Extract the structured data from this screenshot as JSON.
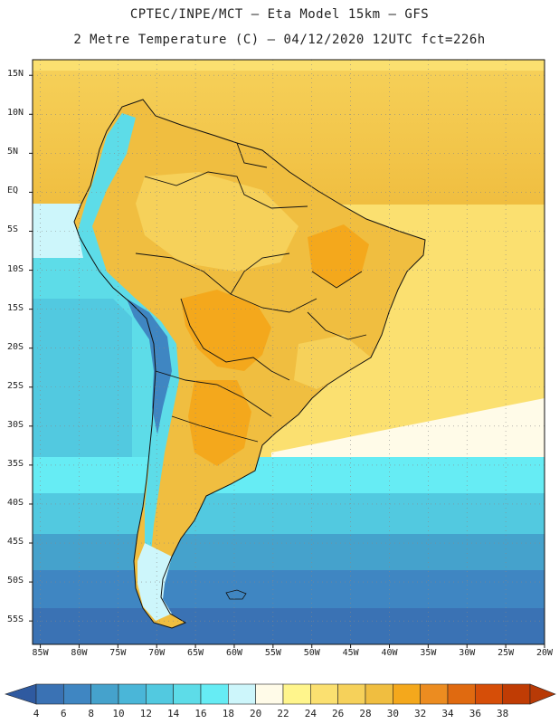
{
  "header": {
    "line1": "CPTEC/INPE/MCT —  Eta Model 15km — GFS",
    "line2": "2 Metre Temperature (C) — 04/12/2020 12UTC fct=226h"
  },
  "map": {
    "region": "South America",
    "lat_labels": [
      "15N",
      "10N",
      "5N",
      "EQ",
      "5S",
      "10S",
      "15S",
      "20S",
      "25S",
      "30S",
      "35S",
      "40S",
      "45S",
      "50S",
      "55S"
    ],
    "lat_values": [
      15,
      10,
      5,
      0,
      -5,
      -10,
      -15,
      -20,
      -25,
      -30,
      -35,
      -40,
      -45,
      -50,
      -55
    ],
    "lon_labels": [
      "85W",
      "80W",
      "75W",
      "70W",
      "65W",
      "60W",
      "55W",
      "50W",
      "45W",
      "40W",
      "35W",
      "30W",
      "25W",
      "20W"
    ],
    "lon_values": [
      -85,
      -80,
      -75,
      -70,
      -65,
      -60,
      -55,
      -50,
      -45,
      -40,
      -35,
      -30,
      -25,
      -20
    ],
    "lat_range": [
      -58,
      17
    ],
    "lon_range": [
      -86,
      -20
    ]
  },
  "colorbar": {
    "labels": [
      "4",
      "6",
      "8",
      "10",
      "12",
      "14",
      "16",
      "18",
      "20",
      "22",
      "24",
      "26",
      "28",
      "30",
      "32",
      "34",
      "36",
      "38"
    ],
    "colors": [
      "#3a72b4",
      "#3f86c2",
      "#45a2cc",
      "#4ab6d8",
      "#52c9e0",
      "#5ddce8",
      "#66ecf4",
      "#cdf6fb",
      "#fffbe8",
      "#fff58c",
      "#fbe070",
      "#f6d15a",
      "#f0be40",
      "#f4a81c",
      "#ec8c20",
      "#e06a10",
      "#d64e08",
      "#c03c04"
    ],
    "left_arrow_color": "#2f5aa0",
    "right_arrow_color": "#b83a06"
  }
}
